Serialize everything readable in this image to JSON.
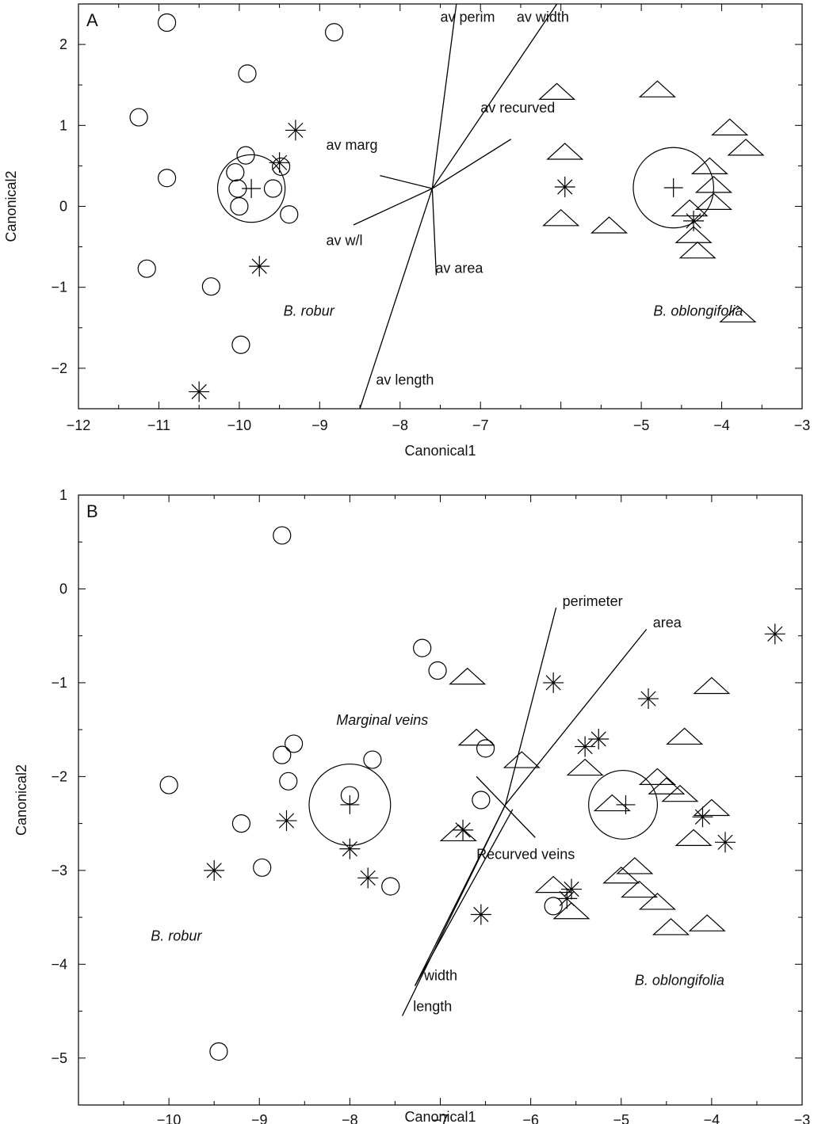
{
  "chart_data": [
    {
      "type": "scatter",
      "panel_label": "A",
      "xlabel": "Canonical1",
      "ylabel": "Canonical2",
      "xlim": [
        -12,
        -3
      ],
      "ylim": [
        -2.5,
        2.5
      ],
      "xticks": [
        -12,
        -11,
        -10,
        -9,
        -8,
        -7,
        -5,
        -4,
        -3
      ],
      "yticks": [
        -2,
        -1,
        0,
        1,
        2
      ],
      "grid": false,
      "series": [
        {
          "marker": "circle",
          "points": [
            [
              -10.9,
              2.27
            ],
            [
              -8.82,
              2.15
            ],
            [
              -9.9,
              1.64
            ],
            [
              -11.25,
              1.1
            ],
            [
              -10.9,
              0.35
            ],
            [
              -9.92,
              0.63
            ],
            [
              -10.05,
              0.42
            ],
            [
              -10.02,
              0.22
            ],
            [
              -9.58,
              0.22
            ],
            [
              -9.48,
              0.49
            ],
            [
              -10.0,
              0.0
            ],
            [
              -9.38,
              -0.1
            ],
            [
              -11.15,
              -0.77
            ],
            [
              -10.35,
              -0.99
            ],
            [
              -9.98,
              -1.71
            ]
          ]
        },
        {
          "marker": "triangle",
          "points": [
            [
              -6.05,
              1.42
            ],
            [
              -4.8,
              1.45
            ],
            [
              -5.95,
              0.68
            ],
            [
              -3.9,
              0.98
            ],
            [
              -3.7,
              0.73
            ],
            [
              -4.15,
              0.5
            ],
            [
              -4.1,
              0.27
            ],
            [
              -4.1,
              0.06
            ],
            [
              -4.4,
              -0.02
            ],
            [
              -6.0,
              -0.14
            ],
            [
              -5.4,
              -0.23
            ],
            [
              -4.35,
              -0.35
            ],
            [
              -4.3,
              -0.54
            ],
            [
              -3.8,
              -1.33
            ]
          ]
        },
        {
          "marker": "asterisk",
          "points": [
            [
              -9.3,
              0.94
            ],
            [
              -9.5,
              0.54
            ],
            [
              -5.95,
              0.24
            ],
            [
              -4.35,
              -0.18
            ],
            [
              -9.75,
              -0.74
            ],
            [
              -10.5,
              -2.29
            ]
          ]
        },
        {
          "marker": "centroid",
          "points": [
            [
              -9.85,
              0.22
            ],
            [
              -4.6,
              0.23
            ]
          ]
        }
      ],
      "confidence_circles": [
        {
          "center": [
            -9.85,
            0.22
          ],
          "radius_x": 0.42
        },
        {
          "center": [
            -4.6,
            0.23
          ],
          "radius_x": 0.5
        }
      ],
      "vectors": {
        "origin": [
          -7.6,
          0.22
        ],
        "items": [
          {
            "label": "av perim",
            "end": [
              -7.3,
              2.5
            ],
            "label_at": [
              -7.5,
              2.28
            ]
          },
          {
            "label": "av width",
            "end": [
              -6.05,
              2.5
            ],
            "label_at": [
              -6.55,
              2.28
            ]
          },
          {
            "label": "av recurved",
            "end": [
              -6.62,
              0.83
            ],
            "label_at": [
              -7.0,
              1.16
            ]
          },
          {
            "label": "av marg",
            "end": [
              -8.25,
              0.38
            ],
            "label_at": [
              -8.92,
              0.7
            ]
          },
          {
            "label": "av w/l",
            "end": [
              -8.58,
              -0.23
            ],
            "label_at": [
              -8.92,
              -0.48
            ]
          },
          {
            "label": "av area",
            "end": [
              -7.55,
              -0.85
            ],
            "label_at": [
              -7.56,
              -0.82
            ]
          },
          {
            "label": "av length",
            "end": [
              -8.5,
              -2.5
            ],
            "label_at": [
              -8.3,
              -2.2
            ]
          }
        ]
      },
      "group_labels": [
        {
          "text": "B. robur",
          "at": [
            -9.45,
            -1.35
          ]
        },
        {
          "text": "B. oblongifolia",
          "at": [
            -4.85,
            -1.35
          ]
        }
      ]
    },
    {
      "type": "scatter",
      "panel_label": "B",
      "xlabel": "Canonical1",
      "ylabel": "Canonical2",
      "xlim": [
        -11,
        -3
      ],
      "ylim": [
        -5.5,
        1
      ],
      "xticks": [
        -10,
        -9,
        -8,
        -7,
        -6,
        -5,
        -4,
        -3
      ],
      "yticks": [
        1,
        0,
        -1,
        -2,
        -3,
        -4,
        -5
      ],
      "grid": false,
      "series": [
        {
          "marker": "circle",
          "points": [
            [
              -8.75,
              0.57
            ],
            [
              -7.2,
              -0.63
            ],
            [
              -7.03,
              -0.87
            ],
            [
              -8.62,
              -1.65
            ],
            [
              -8.75,
              -1.77
            ],
            [
              -7.75,
              -1.82
            ],
            [
              -6.5,
              -1.7
            ],
            [
              -8.68,
              -2.05
            ],
            [
              -10.0,
              -2.09
            ],
            [
              -8.0,
              -2.2
            ],
            [
              -6.55,
              -2.25
            ],
            [
              -9.2,
              -2.5
            ],
            [
              -8.97,
              -2.97
            ],
            [
              -7.55,
              -3.17
            ],
            [
              -5.75,
              -3.38
            ],
            [
              -9.45,
              -4.93
            ]
          ]
        },
        {
          "marker": "triangle",
          "points": [
            [
              -6.7,
              -0.93
            ],
            [
              -4.0,
              -1.03
            ],
            [
              -6.6,
              -1.58
            ],
            [
              -4.3,
              -1.57
            ],
            [
              -6.1,
              -1.82
            ],
            [
              -5.4,
              -1.9
            ],
            [
              -4.6,
              -2.0
            ],
            [
              -4.5,
              -2.1
            ],
            [
              -4.35,
              -2.18
            ],
            [
              -5.1,
              -2.28
            ],
            [
              -4.0,
              -2.33
            ],
            [
              -6.8,
              -2.6
            ],
            [
              -4.2,
              -2.65
            ],
            [
              -4.85,
              -2.95
            ],
            [
              -5.75,
              -3.15
            ],
            [
              -5.0,
              -3.05
            ],
            [
              -4.8,
              -3.2
            ],
            [
              -4.6,
              -3.33
            ],
            [
              -5.55,
              -3.43
            ],
            [
              -4.45,
              -3.6
            ],
            [
              -4.05,
              -3.56
            ]
          ]
        },
        {
          "marker": "asterisk",
          "points": [
            [
              -3.3,
              -0.48
            ],
            [
              -5.75,
              -1.0
            ],
            [
              -4.7,
              -1.17
            ],
            [
              -5.25,
              -1.6
            ],
            [
              -5.4,
              -1.68
            ],
            [
              -8.7,
              -2.47
            ],
            [
              -4.1,
              -2.43
            ],
            [
              -3.85,
              -2.7
            ],
            [
              -8.0,
              -2.77
            ],
            [
              -6.75,
              -2.57
            ],
            [
              -9.5,
              -3.0
            ],
            [
              -7.8,
              -3.08
            ],
            [
              -5.55,
              -3.2
            ],
            [
              -5.6,
              -3.3
            ],
            [
              -6.55,
              -3.47
            ]
          ]
        },
        {
          "marker": "centroid",
          "points": [
            [
              -8.0,
              -2.3
            ],
            [
              -4.95,
              -2.3
            ]
          ]
        }
      ],
      "confidence_circles": [
        {
          "center": [
            -8.0,
            -2.3
          ],
          "radius_x": 0.45
        },
        {
          "center": [
            -4.98,
            -2.3
          ],
          "radius_x": 0.38
        }
      ],
      "vectors": {
        "origin": [
          -6.28,
          -2.3
        ],
        "items": [
          {
            "label": "perimeter",
            "end": [
              -5.72,
              -0.2
            ],
            "label_at": [
              -5.65,
              -0.18
            ]
          },
          {
            "label": "area",
            "end": [
              -4.72,
              -0.43
            ],
            "label_at": [
              -4.65,
              -0.41
            ]
          },
          {
            "label": "Recurved veins",
            "end": [
              -6.28,
              -2.3
            ],
            "label_at": [
              -6.6,
              -2.88
            ]
          },
          {
            "label": "width",
            "end": [
              -7.28,
              -4.23
            ],
            "label_at": [
              -7.18,
              -4.17
            ]
          },
          {
            "label": "length",
            "end": [
              -7.42,
              -4.55
            ],
            "label_at": [
              -7.3,
              -4.5
            ]
          }
        ],
        "extra_segments": [
          {
            "from": [
              -6.6,
              -2.0
            ],
            "to": [
              -5.95,
              -2.65
            ]
          },
          {
            "from": [
              -6.2,
              -2.35
            ],
            "to": [
              -7.28,
              -4.23
            ]
          }
        ]
      },
      "group_labels": [
        {
          "text": "Marginal veins",
          "at": [
            -8.15,
            -1.45
          ]
        },
        {
          "text": "B. robur",
          "at": [
            -10.2,
            -3.75
          ]
        },
        {
          "text": "B. oblongifolia",
          "at": [
            -4.85,
            -4.22
          ]
        }
      ]
    }
  ]
}
